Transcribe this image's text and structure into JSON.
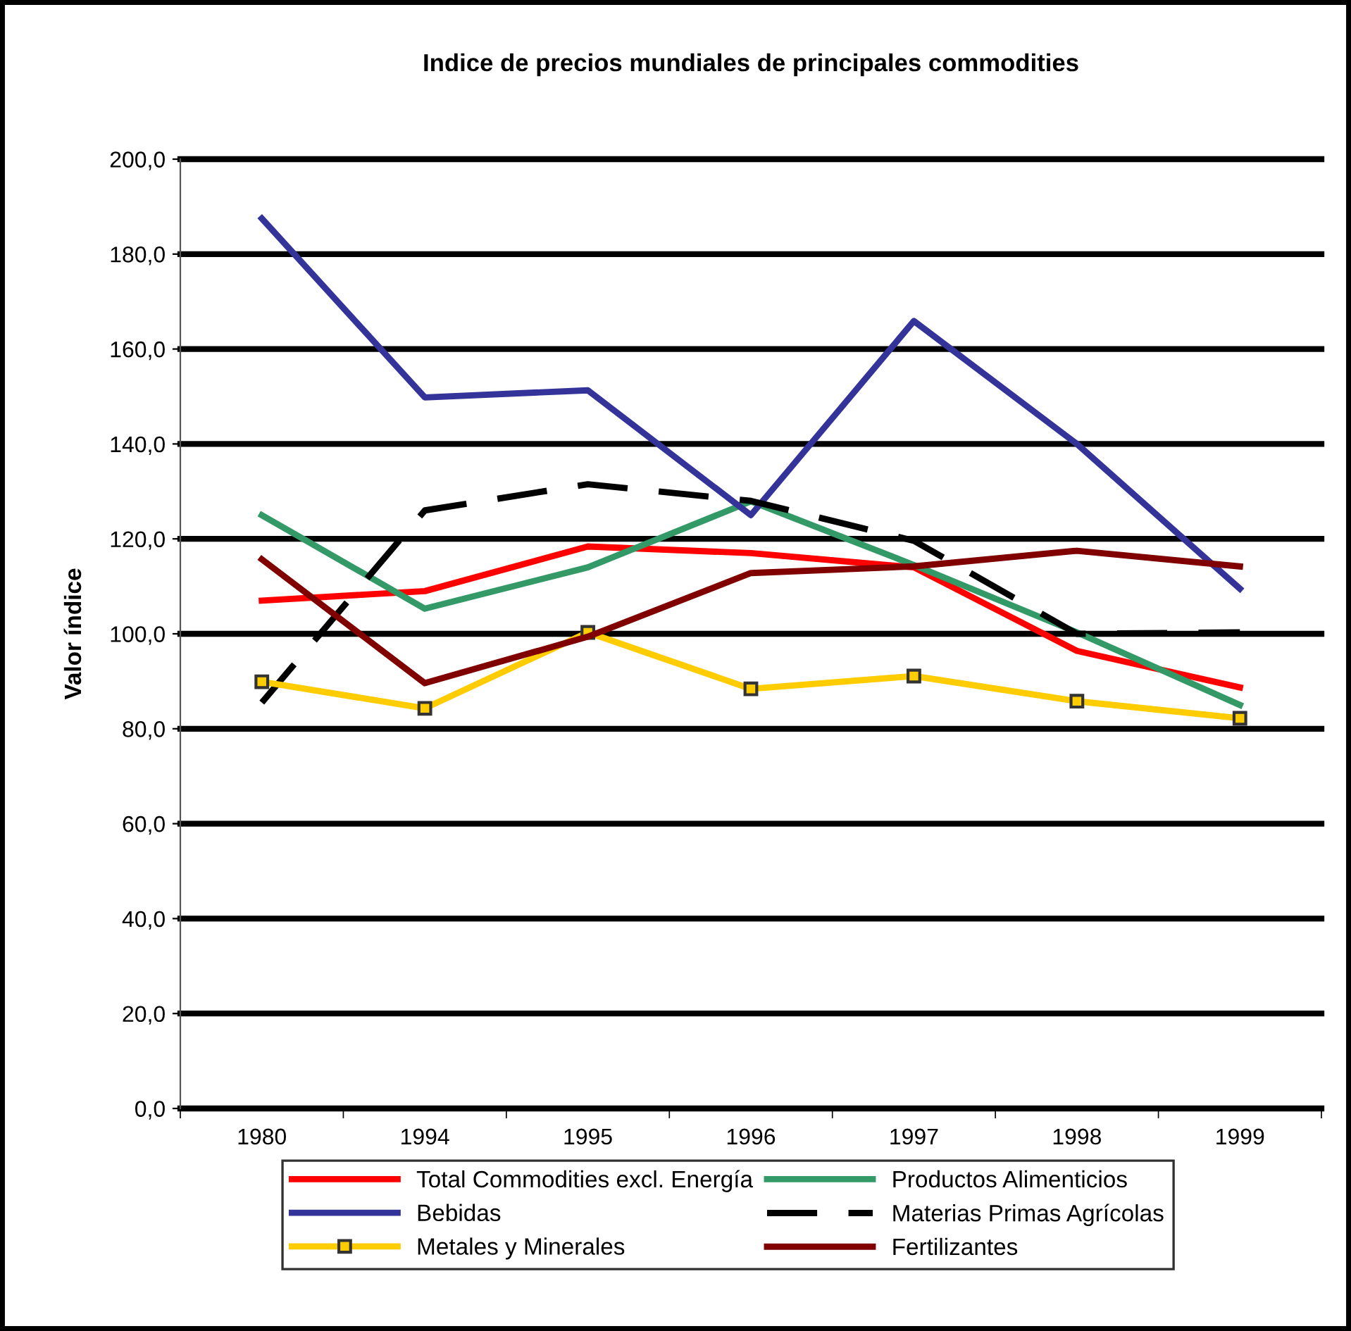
{
  "chart_data": {
    "type": "line",
    "title": "Indice de precios mundiales de principales commodities",
    "ylabel": "Valor índice",
    "categories": [
      "1980",
      "1994",
      "1995",
      "1996",
      "1997",
      "1998",
      "1999"
    ],
    "series": [
      {
        "name": "Total Commodities excl. Energía",
        "color": "#ff0000",
        "values": [
          107.0,
          109.0,
          118.4,
          117.0,
          114.0,
          96.4,
          88.7
        ]
      },
      {
        "name": "Productos Alimenticios",
        "color": "#339966",
        "values": [
          125.0,
          105.3,
          114.0,
          127.9,
          114.5,
          100.3,
          85.0
        ]
      },
      {
        "name": "Bebidas",
        "color": "#333399",
        "values": [
          187.5,
          149.8,
          151.3,
          125.0,
          165.9,
          140.0,
          109.5
        ]
      },
      {
        "name": "Materias Primas Agrícolas",
        "color": "#000000",
        "line_style": "dashed",
        "values": [
          85.5,
          126.0,
          131.5,
          128.0,
          119.6,
          100.0,
          100.3
        ]
      },
      {
        "name": "Metales y Minerales",
        "color": "#ffcc00",
        "marker": "square",
        "values": [
          89.9,
          84.3,
          100.3,
          88.4,
          91.1,
          85.8,
          82.2
        ]
      },
      {
        "name": "Fertilizantes",
        "color": "#800000",
        "values": [
          115.7,
          89.6,
          99.4,
          112.8,
          114.2,
          117.5,
          114.2
        ]
      }
    ],
    "ylim": [
      0,
      200
    ],
    "yticks": [
      {
        "value": 0,
        "label": "0,0"
      },
      {
        "value": 20,
        "label": "20,0"
      },
      {
        "value": 40,
        "label": "40,0"
      },
      {
        "value": 60,
        "label": "60,0"
      },
      {
        "value": 80,
        "label": "80,0"
      },
      {
        "value": 100,
        "label": "100,0"
      },
      {
        "value": 120,
        "label": "120,0"
      },
      {
        "value": 140,
        "label": "140,0"
      },
      {
        "value": 160,
        "label": "160,0"
      },
      {
        "value": 180,
        "label": "180,0"
      },
      {
        "value": 200,
        "label": "200,0"
      }
    ],
    "grid": "y",
    "legend": "bottom"
  }
}
